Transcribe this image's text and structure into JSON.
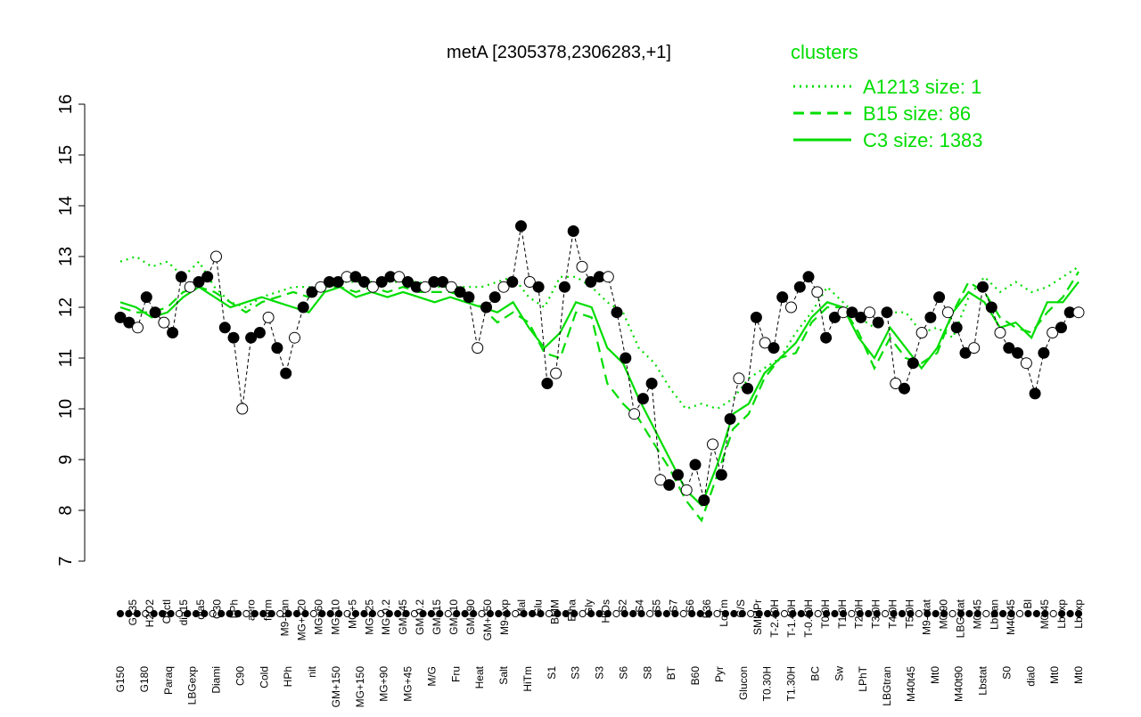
{
  "chart_data": {
    "type": "line",
    "title": "metA [2305378,2306283,+1]",
    "xlabel": "",
    "ylabel": "",
    "ylim": [
      7,
      16
    ],
    "y_ticks": [
      7,
      8,
      9,
      10,
      11,
      12,
      13,
      14,
      15,
      16
    ],
    "grid": false,
    "legend": {
      "title": "clusters",
      "placement": "top-right",
      "color": "#00dd00",
      "entries": [
        {
          "label": "A1213 size: 1",
          "style": "dotted"
        },
        {
          "label": "B15 size: 86",
          "style": "dashed"
        },
        {
          "label": "C3 size: 1383",
          "style": "solid"
        }
      ]
    },
    "x_tick_labels_upper": [
      "G135",
      "H2O2",
      "Oxctl",
      "dia15",
      "dia5",
      "C30",
      "LPh",
      "aero",
      "ferm",
      "M9-tran",
      "MG+120",
      "MG+60",
      "MG+10",
      "MG+5",
      "MG+25",
      "MG-0.2",
      "GM+45",
      "GM-0.2",
      "GM+15",
      "GM+10",
      "GM+90",
      "GM+150",
      "M9-exp",
      "Mal",
      "Glu",
      "BMM",
      "Etha",
      "Gly",
      "HiOs",
      "S2",
      "S4",
      "S5",
      "S7",
      "S6",
      "B36",
      "LoTm",
      "G/S",
      "SMMPr",
      "T-2.40H",
      "T-1.40H",
      "T-0.40H",
      "T0.0H",
      "T1.0H",
      "T2.0H",
      "T3.0H",
      "T4.0H",
      "T5.0H",
      "M9-stat",
      "M0t90",
      "LBGstat",
      "M0t45",
      "Lbtran",
      "M40t45",
      "Bl",
      "M0t45",
      "Lbexp",
      "Lbexp"
    ],
    "x_tick_labels_lower": [
      "G150",
      "G180",
      "Paraq",
      "LBGexp",
      "Diami",
      "C90",
      "Cold",
      "HPh",
      "nit",
      "GM+150",
      "MG+150",
      "MG+90",
      "MG+45",
      "M/G",
      "Fru",
      "Heat",
      "Salt",
      "HiTm",
      "S1",
      "S3",
      "S3",
      "S6",
      "S8",
      "BT",
      "B60",
      "Pyr",
      "Glucon",
      "T0.30H",
      "T1.30H",
      "BC",
      "Sw",
      "LPhT",
      "LBGtran",
      "M40t45",
      "Mt0",
      "M40t90",
      "Lbstat",
      "S0",
      "dia0",
      "Mt0",
      "Mt0"
    ],
    "series": [
      {
        "name": "",
        "style": "solid",
        "color": "#00dd00",
        "values": [
          12.1,
          12.0,
          11.8,
          11.9,
          12.2,
          12.4,
          12.2,
          12.0,
          12.1,
          12.2,
          12.1,
          12.0,
          11.9,
          12.3,
          12.4,
          12.2,
          12.3,
          12.2,
          12.3,
          12.2,
          12.1,
          12.2,
          12.1,
          12.0,
          11.9,
          12.1,
          11.6,
          11.2,
          11.5,
          12.1,
          12.0,
          11.2,
          10.9,
          10.2,
          9.6,
          9.0,
          8.4,
          8.1,
          8.9,
          9.9,
          10.1,
          10.7,
          11.0,
          11.3,
          11.8,
          12.1,
          12.0,
          11.4,
          11.0,
          11.6,
          11.2,
          10.8,
          11.2,
          11.9,
          12.3,
          12.1,
          11.6,
          11.7,
          11.4,
          12.1,
          12.1,
          12.5
        ]
      },
      {
        "name": "",
        "style": "dashed",
        "color": "#00dd00",
        "values": [
          12.0,
          11.9,
          11.9,
          12.0,
          12.3,
          12.4,
          12.3,
          12.1,
          11.9,
          12.1,
          12.2,
          12.3,
          12.2,
          12.4,
          12.4,
          12.3,
          12.4,
          12.3,
          12.4,
          12.3,
          12.3,
          12.3,
          12.2,
          12.0,
          11.7,
          11.9,
          11.7,
          11.1,
          11.0,
          11.9,
          11.8,
          10.5,
          10.1,
          9.8,
          9.3,
          8.8,
          8.2,
          7.8,
          8.7,
          9.6,
          9.9,
          10.6,
          11.0,
          11.1,
          11.7,
          12.0,
          12.0,
          11.5,
          10.8,
          11.4,
          11.0,
          10.9,
          11.1,
          11.9,
          12.5,
          12.3,
          11.8,
          11.6,
          11.5,
          11.9,
          12.2,
          12.7
        ]
      },
      {
        "name": "",
        "style": "dotted",
        "color": "#00dd00",
        "values": [
          12.9,
          13.0,
          12.8,
          12.9,
          12.6,
          12.9,
          12.4,
          12.1,
          12.0,
          12.2,
          12.3,
          12.4,
          12.4,
          12.4,
          12.5,
          12.5,
          12.5,
          12.5,
          12.5,
          12.5,
          12.4,
          12.4,
          12.4,
          12.4,
          12.5,
          12.6,
          12.2,
          12.0,
          12.6,
          12.6,
          12.4,
          12.1,
          11.9,
          11.2,
          10.9,
          10.4,
          10.0,
          10.1,
          10.0,
          10.2,
          10.6,
          10.8,
          11.0,
          11.5,
          11.9,
          12.4,
          12.1,
          11.8,
          11.6,
          11.9,
          11.9,
          11.5,
          11.6,
          11.4,
          12.2,
          12.6,
          12.3,
          12.5,
          12.3,
          12.4,
          12.6,
          12.8
        ]
      },
      {
        "name": "",
        "style": "points",
        "color": "#000000",
        "values": [
          11.8,
          11.7,
          11.6,
          12.2,
          11.9,
          11.7,
          11.5,
          12.6,
          12.4,
          12.5,
          12.6,
          13.0,
          11.6,
          11.4,
          10.0,
          11.4,
          11.5,
          11.8,
          11.2,
          10.7,
          11.4,
          12.0,
          12.3,
          12.4,
          12.5,
          12.5,
          12.6,
          12.6,
          12.5,
          12.4,
          12.5,
          12.6,
          12.6,
          12.5,
          12.4,
          12.4,
          12.5,
          12.5,
          12.4,
          12.3,
          12.2,
          11.2,
          12.0,
          12.2,
          12.4,
          12.5,
          13.6,
          12.5,
          12.4,
          10.5,
          10.7,
          12.4,
          13.5,
          12.8,
          12.5,
          12.6,
          12.6,
          11.9,
          11.0,
          9.9,
          10.2,
          10.5,
          8.6,
          8.5,
          8.7,
          8.4,
          8.9,
          8.2,
          9.3,
          8.7,
          9.8,
          10.6,
          10.4,
          11.8,
          11.3,
          11.2,
          12.2,
          12.0,
          12.4,
          12.6,
          12.3,
          11.4,
          11.8,
          11.9,
          11.9,
          11.8,
          11.9,
          11.7,
          11.9,
          10.5,
          10.4,
          10.9,
          11.5,
          11.8,
          12.2,
          11.9,
          11.6,
          11.1,
          11.2,
          12.4,
          12.0,
          11.5,
          11.2,
          11.1,
          10.9,
          10.3,
          11.1,
          11.5,
          11.6,
          11.9,
          11.9
        ]
      }
    ]
  }
}
